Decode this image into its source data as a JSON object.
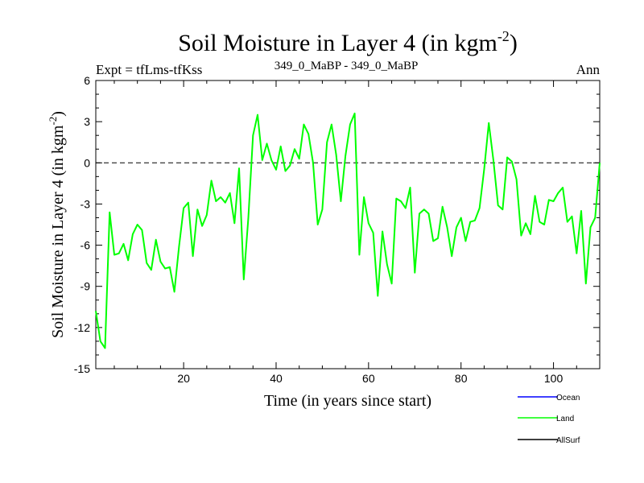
{
  "chart_data": {
    "type": "line",
    "title": "Soil Moisture in Layer 4 (in kgm",
    "title_sup": "-2",
    "title_close": ")",
    "subtitle_left": "Expt = tfLms-tfKss",
    "subtitle_center": "349_0_MaBP - 349_0_MaBP",
    "subtitle_right": "Ann",
    "xlabel": "Time (in years since start)",
    "ylabel": "Soil Moisture in Layer 4 (in kgm",
    "ylabel_sup": "-2",
    "ylabel_close": ")",
    "xlim": [
      1,
      110
    ],
    "ylim": [
      -15,
      6
    ],
    "xticks_major": [
      20,
      40,
      60,
      80,
      100
    ],
    "xticks_minor_step": 5,
    "yticks_major": [
      6,
      3,
      0,
      -3,
      -6,
      -9,
      -12,
      -15
    ],
    "yticks_minor_step": 1,
    "zero_line": "dashed",
    "series": [
      {
        "name": "Ocean",
        "color": "#0000ff",
        "x": [],
        "values": []
      },
      {
        "name": "Land",
        "color": "#00ff00",
        "x": [
          1,
          2,
          3,
          4,
          5,
          6,
          7,
          8,
          9,
          10,
          11,
          12,
          13,
          14,
          15,
          16,
          17,
          18,
          19,
          20,
          21,
          22,
          23,
          24,
          25,
          26,
          27,
          28,
          29,
          30,
          31,
          32,
          33,
          34,
          35,
          36,
          37,
          38,
          39,
          40,
          41,
          42,
          43,
          44,
          45,
          46,
          47,
          48,
          49,
          50,
          51,
          52,
          53,
          54,
          55,
          56,
          57,
          58,
          59,
          60,
          61,
          62,
          63,
          64,
          65,
          66,
          67,
          68,
          69,
          70,
          71,
          72,
          73,
          74,
          75,
          76,
          77,
          78,
          79,
          80,
          81,
          82,
          83,
          84,
          85,
          86,
          87,
          88,
          89,
          90,
          91,
          92,
          93,
          94,
          95,
          96,
          97,
          98,
          99,
          100,
          101,
          102,
          103,
          104,
          105,
          106,
          107,
          108,
          109,
          110
        ],
        "values": [
          -10.8,
          -13,
          -13.5,
          -3.6,
          -6.7,
          -6.6,
          -5.9,
          -7.1,
          -5.2,
          -4.5,
          -4.9,
          -7.3,
          -7.8,
          -5.6,
          -7.2,
          -7.7,
          -7.6,
          -9.4,
          -6.1,
          -3.3,
          -2.9,
          -6.8,
          -3.4,
          -4.6,
          -3.8,
          -1.3,
          -2.8,
          -2.5,
          -2.9,
          -2.2,
          -4.4,
          -0.4,
          -8.5,
          -4,
          2,
          3.5,
          0.2,
          1.4,
          0.2,
          -0.5,
          1.2,
          -0.6,
          -0.2,
          1,
          0.3,
          2.8,
          2.1,
          0,
          -4.5,
          -3.4,
          1.5,
          2.8,
          0.6,
          -2.8,
          0.5,
          2.8,
          3.6,
          -6.7,
          -2.5,
          -4.4,
          -5.1,
          -9.7,
          -5,
          -7.4,
          -8.8,
          -2.6,
          -2.8,
          -3.3,
          -1.8,
          -8,
          -3.7,
          -3.4,
          -3.7,
          -5.7,
          -5.5,
          -3.2,
          -4.7,
          -6.8,
          -4.7,
          -4,
          -5.7,
          -4.3,
          -4.2,
          -3.3,
          -0.5,
          2.9,
          0.2,
          -3.1,
          -3.4,
          0.4,
          0.1,
          -1.2,
          -5.3,
          -4.4,
          -5.2,
          -2.4,
          -4.3,
          -4.5,
          -2.7,
          -2.8,
          -2.2,
          -1.8,
          -4.3,
          -3.9,
          -6.6,
          -3.5,
          -8.8,
          -4.7,
          -4,
          0
        ]
      },
      {
        "name": "AllSurf",
        "color": "#000000",
        "x": [],
        "values": []
      }
    ],
    "legend_position": "bottom-right"
  }
}
